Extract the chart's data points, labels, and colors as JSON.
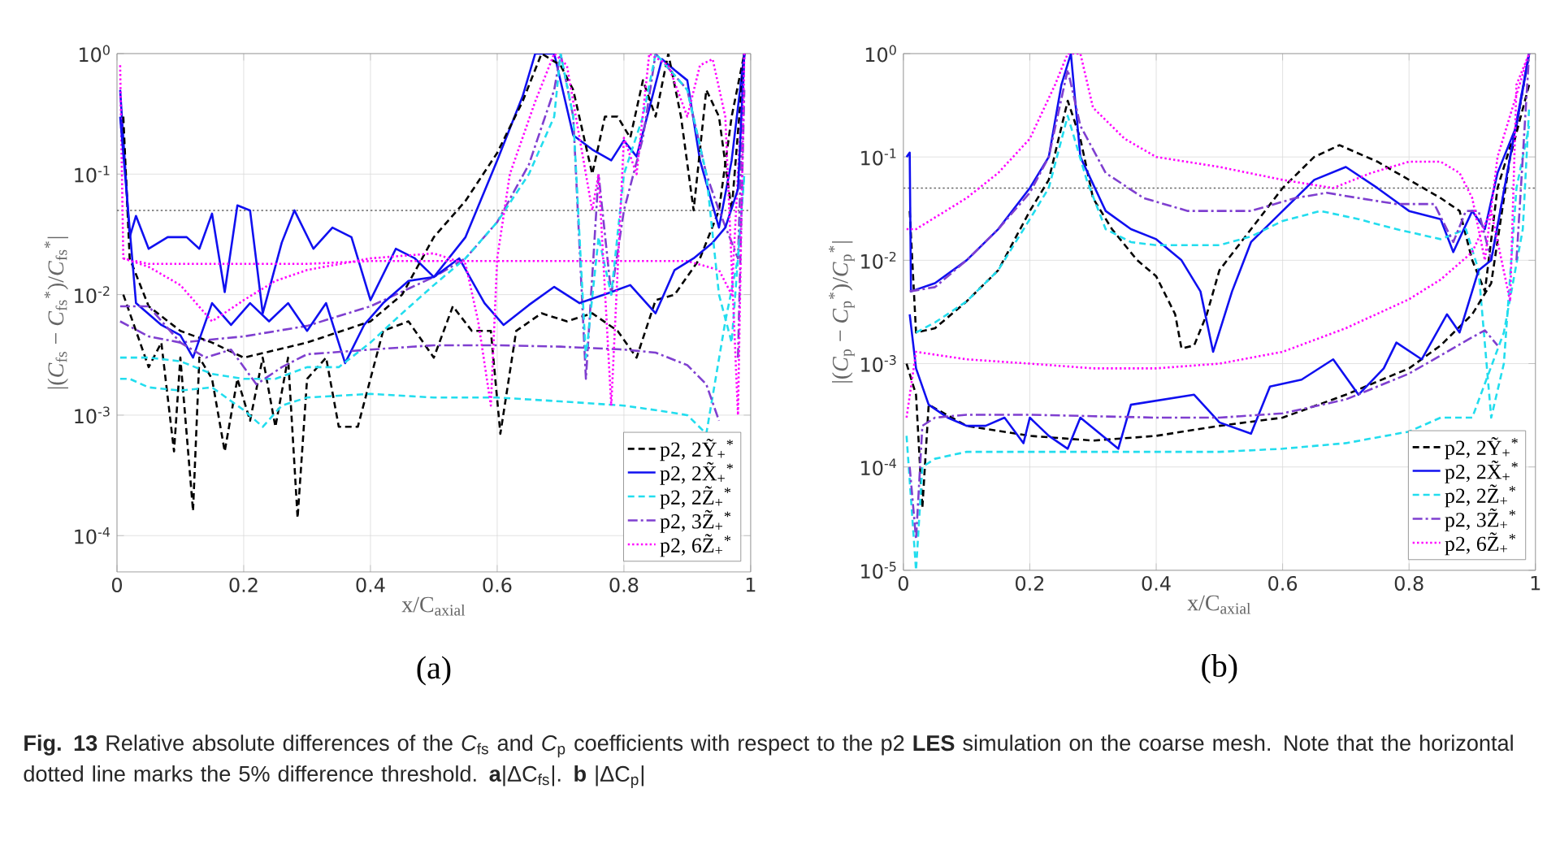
{
  "chart_data": [
    {
      "type": "line",
      "title": "(a)",
      "xlabel": "x/C$_{axial}$",
      "ylabel": "|(*C*$_{fs}$ − *C*$_{fs}$$^{*}$)/*C*$_{fs}$$^{*}$|",
      "log": "y",
      "grid": true,
      "legend": "bottom right",
      "xlim": [
        0,
        1
      ],
      "ylim": [
        5e-05,
        1
      ],
      "xticks": [
        0,
        0.2,
        0.4,
        0.6,
        0.8,
        1
      ],
      "yticks": [
        {
          "value": 0.0001,
          "label": "10$^{-4}$"
        },
        {
          "value": 0.001,
          "label": "10$^{-3}$"
        },
        {
          "value": 0.01,
          "label": "10$^{-2}$"
        },
        {
          "value": 0.1,
          "label": "10$^{-1}$"
        },
        {
          "value": 1,
          "label": "10$^{0}$"
        }
      ],
      "ref_lines": [
        {
          "axis": "y",
          "value": 0.05,
          "color": "#666666",
          "line_style": "dotted"
        }
      ],
      "annotations": [
        "**Fig. 13** Relative absolute differences of the *C*$_{fs}$ and *C*$_{p}$ coefficients with respect to the p2 **LES** simulation on the coarse mesh. Note that the horizontal dotted line marks the 5% difference threshold. **a**|ΔC$_{fs}$|. **b** |ΔC$_{p}$|"
      ],
      "series": [
        {
          "name": "p2, 2Ỹ$_{+}$$^{*}$",
          "color": "#000000",
          "line_style": "dashed",
          "x": [
            0.01,
            0.03,
            0.05,
            0.07,
            0.09,
            0.1,
            0.12,
            0.13,
            0.15,
            0.17,
            0.19,
            0.21,
            0.23,
            0.25,
            0.27,
            0.285,
            0.3,
            0.33,
            0.35,
            0.38,
            0.4,
            0.42,
            0.46,
            0.5,
            0.53,
            0.56,
            0.59,
            0.605,
            0.63,
            0.67,
            0.71,
            0.75,
            0.79,
            0.82,
            0.85,
            0.88,
            0.92,
            0.95,
            0.97,
            0.99
          ],
          "values": [
            0.01,
            0.005,
            0.0025,
            0.004,
            0.0005,
            0.003,
            0.00016,
            0.003,
            0.002,
            0.0005,
            0.002,
            0.0009,
            0.003,
            0.0008,
            0.003,
            0.00014,
            0.002,
            0.003,
            0.0008,
            0.0008,
            0.002,
            0.005,
            0.006,
            0.003,
            0.008,
            0.005,
            0.005,
            0.0007,
            0.005,
            0.007,
            0.006,
            0.007,
            0.005,
            0.003,
            0.009,
            0.01,
            0.02,
            0.05,
            0.3,
            1
          ]
        },
        {
          "name": "p2, 2X̃$_{+}$$^{*}$",
          "color": "#1010f0",
          "line_style": "solid",
          "x": [
            0.005,
            0.02,
            0.03,
            0.05,
            0.08,
            0.11,
            0.13,
            0.15,
            0.17,
            0.19,
            0.21,
            0.23,
            0.26,
            0.28,
            0.31,
            0.34,
            0.37,
            0.4,
            0.44,
            0.47,
            0.5,
            0.55,
            0.6,
            0.64,
            0.66,
            0.69,
            0.72,
            0.75,
            0.78,
            0.8,
            0.82,
            0.84,
            0.86,
            0.88,
            0.9,
            0.92,
            0.95,
            0.97,
            0.99
          ],
          "values": [
            0.5,
            0.03,
            0.045,
            0.024,
            0.03,
            0.03,
            0.024,
            0.047,
            0.0105,
            0.055,
            0.05,
            0.007,
            0.027,
            0.05,
            0.024,
            0.036,
            0.03,
            0.009,
            0.024,
            0.02,
            0.014,
            0.03,
            0.13,
            0.44,
            1,
            1,
            0.21,
            0.16,
            0.13,
            0.19,
            0.14,
            0.35,
            0.9,
            0.73,
            0.6,
            0.13,
            0.036,
            0.13,
            1
          ]
        },
        {
          "name": "p2, 2Z̃$_{+}$$^{*}$",
          "color": "#22ddee",
          "line_style": "dashed",
          "x": [
            0.005,
            0.02,
            0.05,
            0.1,
            0.15,
            0.2,
            0.23,
            0.26,
            0.3,
            0.4,
            0.5,
            0.6,
            0.7,
            0.8,
            0.85,
            0.9,
            0.93,
            0.96,
            0.98,
            0.99
          ],
          "values": [
            0.002,
            0.002,
            0.0017,
            0.0016,
            0.0017,
            0.0011,
            0.0008,
            0.0012,
            0.0014,
            0.0015,
            0.0014,
            0.0014,
            0.0013,
            0.0012,
            0.0011,
            0.001,
            0.0007,
            0.006,
            0.02,
            0.1
          ]
        },
        {
          "name": "p2, 3Z̃$_{+}$$^{*}$",
          "color": "#7f3fd0",
          "line_style": "dashdot",
          "x": [
            0.005,
            0.05,
            0.1,
            0.2,
            0.3,
            0.4,
            0.5,
            0.55,
            0.6,
            0.65,
            0.69,
            0.7,
            0.72,
            0.74,
            0.76,
            0.78,
            0.8,
            0.83,
            0.85,
            0.9,
            0.93,
            0.95,
            0.98,
            0.99
          ],
          "values": [
            0.006,
            0.0045,
            0.004,
            0.0045,
            0.0055,
            0.008,
            0.014,
            0.02,
            0.04,
            0.12,
            0.5,
            1,
            0.3,
            0.002,
            0.1,
            0.01,
            0.05,
            0.2,
            1,
            0.5,
            0.1,
            0.05,
            0.02,
            1
          ]
        },
        {
          "name": "p2, 6Z̃$_{+}$$^{*}$",
          "color": "#ff00ff",
          "line_style": "dotted",
          "x": [
            0.005,
            0.01,
            0.05,
            0.1,
            0.2,
            0.3,
            0.4,
            0.5,
            0.6,
            0.7,
            0.8,
            0.9,
            0.95,
            0.97,
            0.99
          ],
          "values": [
            0.8,
            0.02,
            0.018,
            0.018,
            0.018,
            0.018,
            0.019,
            0.019,
            0.019,
            0.019,
            0.019,
            0.019,
            0.016,
            0.01,
            1
          ]
        },
        {
          "color": "#000000",
          "line_style": "dashed",
          "x": [
            0.01,
            0.02,
            0.05,
            0.1,
            0.15,
            0.2,
            0.3,
            0.4,
            0.45,
            0.5,
            0.55,
            0.6,
            0.64,
            0.67,
            0.7,
            0.72,
            0.75,
            0.77,
            0.79,
            0.81,
            0.83,
            0.85,
            0.87,
            0.89,
            0.91,
            0.93,
            0.95,
            0.97,
            0.99
          ],
          "values": [
            0.3,
            0.02,
            0.008,
            0.005,
            0.004,
            0.003,
            0.004,
            0.006,
            0.01,
            0.03,
            0.06,
            0.15,
            0.4,
            1,
            0.8,
            0.5,
            0.1,
            0.3,
            0.3,
            0.2,
            0.6,
            0.3,
            1,
            0.3,
            0.05,
            0.5,
            0.3,
            0.05,
            1
          ]
        },
        {
          "color": "#1010f0",
          "line_style": "solid",
          "x": [
            0.005,
            0.03,
            0.07,
            0.1,
            0.12,
            0.15,
            0.18,
            0.21,
            0.24,
            0.27,
            0.3,
            0.33,
            0.36,
            0.39,
            0.42,
            0.46,
            0.5,
            0.54,
            0.58,
            0.61,
            0.65,
            0.69,
            0.73,
            0.78,
            0.81,
            0.85,
            0.88,
            0.91,
            0.94,
            0.96,
            0.98,
            0.99
          ],
          "values": [
            0.3,
            0.0085,
            0.0056,
            0.0046,
            0.003,
            0.0085,
            0.0056,
            0.0085,
            0.006,
            0.0085,
            0.005,
            0.0085,
            0.0027,
            0.0056,
            0.0085,
            0.013,
            0.014,
            0.02,
            0.0085,
            0.0056,
            0.0082,
            0.0116,
            0.0085,
            0.0105,
            0.012,
            0.007,
            0.016,
            0.02,
            0.027,
            0.036,
            0.075,
            1
          ]
        },
        {
          "color": "#22ddee",
          "line_style": "dashed",
          "x": [
            0.005,
            0.05,
            0.1,
            0.15,
            0.2,
            0.25,
            0.3,
            0.35,
            0.4,
            0.45,
            0.5,
            0.55,
            0.6,
            0.65,
            0.69,
            0.7,
            0.72,
            0.74,
            0.76,
            0.78,
            0.8,
            0.83,
            0.85,
            0.9,
            0.93,
            0.95,
            0.97,
            0.99
          ],
          "values": [
            0.003,
            0.003,
            0.0028,
            0.0022,
            0.002,
            0.002,
            0.0025,
            0.0025,
            0.004,
            0.007,
            0.012,
            0.02,
            0.04,
            0.1,
            0.3,
            1,
            0.3,
            0.003,
            0.03,
            0.01,
            0.1,
            0.3,
            1,
            0.5,
            0.1,
            0.01,
            0.004,
            0.1
          ]
        },
        {
          "color": "#7f3fd0",
          "line_style": "dashdot",
          "x": [
            0.005,
            0.05,
            0.1,
            0.14,
            0.18,
            0.22,
            0.26,
            0.3,
            0.4,
            0.5,
            0.6,
            0.7,
            0.8,
            0.85,
            0.9,
            0.93,
            0.95,
            0.97,
            0.98,
            0.99
          ],
          "values": [
            0.008,
            0.008,
            0.004,
            0.003,
            0.0035,
            0.0018,
            0.0025,
            0.0032,
            0.0035,
            0.0038,
            0.0038,
            0.0037,
            0.0035,
            0.0033,
            0.0026,
            0.0018,
            0.0009,
            null,
            0.003,
            0.5
          ]
        },
        {
          "color": "#ff00ff",
          "line_style": "dotted",
          "x": [
            0.01,
            0.05,
            0.1,
            0.15,
            0.2,
            0.25,
            0.3,
            0.4,
            0.5,
            0.55,
            0.57,
            0.59,
            0.6,
            0.62,
            0.66,
            0.69,
            0.71,
            0.73,
            0.75,
            0.76,
            0.78,
            0.8,
            0.82,
            0.84,
            0.87,
            0.9,
            0.92,
            0.94,
            0.96,
            0.98,
            0.99
          ],
          "values": [
            0.02,
            0.017,
            0.012,
            0.006,
            0.009,
            0.013,
            0.016,
            0.02,
            0.022,
            0.018,
            0.006,
            0.0012,
            0.02,
            0.1,
            0.4,
            1,
            0.8,
            0.2,
            0.05,
            0.1,
            0.0012,
            0.2,
            0.1,
            1,
            0.8,
            0.3,
            0.8,
            0.9,
            0.3,
            0.001,
            1
          ]
        }
      ]
    },
    {
      "type": "line",
      "title": "(b)",
      "xlabel": "x/C$_{axial}$",
      "ylabel": "|(*C*$_{p}$ − *C*$_{p}$$^{*}$)/*C*$_{p}$$^{*}$|",
      "log": "y",
      "grid": true,
      "legend": "bottom right",
      "xlim": [
        0,
        1
      ],
      "ylim": [
        1e-05,
        1
      ],
      "xticks": [
        0,
        0.2,
        0.4,
        0.6,
        0.8,
        1
      ],
      "yticks": [
        {
          "value": 1e-05,
          "label": "10$^{-5}$"
        },
        {
          "value": 0.0001,
          "label": "10$^{-4}$"
        },
        {
          "value": 0.001,
          "label": "10$^{-3}$"
        },
        {
          "value": 0.01,
          "label": "10$^{-2}$"
        },
        {
          "value": 0.1,
          "label": "10$^{-1}$"
        },
        {
          "value": 1,
          "label": "10$^{0}$"
        }
      ],
      "ref_lines": [
        {
          "axis": "y",
          "value": 0.05,
          "color": "#666666",
          "line_style": "dotted"
        }
      ],
      "series": [
        {
          "name": "p2, 2Ỹ$_{+}$$^{*}$",
          "color": "#000000",
          "line_style": "dashed",
          "x": [
            0.01,
            0.02,
            0.05,
            0.1,
            0.15,
            0.2,
            0.23,
            0.26,
            0.28,
            0.3,
            0.33,
            0.37,
            0.4,
            0.43,
            0.44,
            0.46,
            0.48,
            0.5,
            0.55,
            0.6,
            0.65,
            0.69,
            0.75,
            0.8,
            0.85,
            0.88,
            0.9,
            0.92,
            0.94,
            0.97,
            0.99
          ],
          "values": [
            0.03,
            0.002,
            0.0022,
            0.004,
            0.008,
            0.03,
            0.06,
            0.35,
            0.15,
            0.04,
            0.02,
            0.01,
            0.007,
            0.003,
            0.0014,
            0.0015,
            0.003,
            0.008,
            0.02,
            0.05,
            0.1,
            0.13,
            0.09,
            0.06,
            0.04,
            0.03,
            0.01,
            0.005,
            0.05,
            0.2,
            1
          ]
        },
        {
          "name": "p2, 2X̃$_{+}$$^{*}$",
          "color": "#1010f0",
          "line_style": "solid",
          "x": [
            0.005,
            0.01,
            0.012,
            0.05,
            0.1,
            0.15,
            0.2,
            0.23,
            0.25,
            0.265,
            0.28,
            0.32,
            0.36,
            0.4,
            0.44,
            0.47,
            0.49,
            0.52,
            0.55,
            0.6,
            0.65,
            0.7,
            0.75,
            0.8,
            0.85,
            0.87,
            0.9,
            0.92,
            0.94,
            0.97,
            0.99
          ],
          "values": [
            0.1,
            0.11,
            0.005,
            0.006,
            0.01,
            0.02,
            0.05,
            0.1,
            0.5,
            1,
            0.1,
            0.03,
            0.02,
            0.016,
            0.01,
            0.005,
            0.0013,
            0.005,
            0.015,
            0.03,
            0.06,
            0.08,
            0.05,
            0.03,
            0.025,
            0.012,
            0.03,
            0.02,
            0.07,
            0.2,
            1
          ]
        },
        {
          "name": "p2, 2Z̃$_{+}$$^{*}$",
          "color": "#22ddee",
          "line_style": "dashed",
          "x": [
            0.02,
            0.05,
            0.1,
            0.15,
            0.2,
            0.23,
            0.26,
            0.29,
            0.32,
            0.36,
            0.4,
            0.45,
            0.5,
            0.55,
            0.6,
            0.66,
            0.72,
            0.78,
            0.85,
            0.89,
            0.91,
            0.93,
            0.95,
            0.97,
            0.99
          ],
          "values": [
            0.002,
            0.0025,
            0.004,
            0.008,
            0.025,
            0.05,
            0.25,
            0.06,
            0.02,
            0.015,
            0.014,
            0.014,
            0.014,
            0.017,
            0.024,
            0.03,
            0.025,
            0.02,
            0.016,
            0.02,
            0.008,
            0.0003,
            0.001,
            0.05,
            0.2
          ]
        },
        {
          "name": "p2, 3Z̃$_{+}$$^{*}$",
          "color": "#7f3fd0",
          "line_style": "dashdot",
          "x": [
            0.01,
            0.05,
            0.1,
            0.15,
            0.2,
            0.23,
            0.26,
            0.28,
            0.32,
            0.38,
            0.45,
            0.55,
            0.62,
            0.67,
            0.72,
            0.78,
            0.84,
            0.87,
            0.89,
            0.91,
            0.93,
            0.96,
            0.99
          ],
          "values": [
            0.005,
            0.0055,
            0.01,
            0.02,
            0.045,
            0.1,
            0.7,
            0.2,
            0.07,
            0.04,
            0.03,
            0.03,
            0.04,
            0.045,
            0.04,
            0.035,
            0.035,
            0.015,
            0.03,
            0.03,
            0.01,
            0.1,
            1
          ]
        },
        {
          "name": "p2, 6Z̃$_{+}$$^{*}$",
          "color": "#ff00ff",
          "line_style": "dotted",
          "x": [
            0.005,
            0.02,
            0.1,
            0.15,
            0.2,
            0.24,
            0.26,
            0.28,
            0.3,
            0.35,
            0.4,
            0.5,
            0.6,
            0.68,
            0.74,
            0.8,
            0.85,
            0.88,
            0.9,
            0.92,
            0.94,
            0.97,
            0.99
          ],
          "values": [
            0.02,
            0.02,
            0.04,
            0.07,
            0.15,
            0.5,
            1,
            1,
            0.3,
            0.15,
            0.1,
            0.08,
            0.06,
            0.05,
            0.07,
            0.09,
            0.09,
            0.07,
            0.04,
            0.01,
            0.1,
            0.4,
            1
          ]
        },
        {
          "color": "#000000",
          "line_style": "dashed",
          "x": [
            0.005,
            0.02,
            0.03,
            0.04,
            0.1,
            0.2,
            0.3,
            0.4,
            0.5,
            0.6,
            0.7,
            0.8,
            0.85,
            0.9,
            0.93,
            0.96,
            0.99
          ],
          "values": [
            0.001,
            0.0005,
            4e-05,
            0.0004,
            0.00025,
            0.0002,
            0.00018,
            0.0002,
            0.00025,
            0.0003,
            0.0005,
            0.0009,
            0.0015,
            0.003,
            0.006,
            0.1,
            0.5
          ]
        },
        {
          "color": "#1010f0",
          "line_style": "solid",
          "x": [
            0.01,
            0.02,
            0.04,
            0.07,
            0.1,
            0.13,
            0.16,
            0.19,
            0.2,
            0.23,
            0.26,
            0.28,
            0.34,
            0.36,
            0.46,
            0.5,
            0.55,
            0.58,
            0.63,
            0.68,
            0.72,
            0.76,
            0.78,
            0.82,
            0.86,
            0.88,
            0.91,
            0.93,
            0.96,
            0.99
          ],
          "values": [
            0.003,
            0.0009,
            0.0004,
            0.0003,
            0.00025,
            0.00025,
            0.0003,
            0.00017,
            0.0003,
            0.0002,
            0.00015,
            0.0003,
            0.00015,
            0.0004,
            0.0005,
            0.00027,
            0.00021,
            0.0006,
            0.0007,
            0.0011,
            0.0005,
            0.0009,
            0.0016,
            0.0011,
            0.003,
            0.002,
            0.008,
            0.01,
            0.1,
            1
          ]
        },
        {
          "color": "#22ddee",
          "line_style": "dashed",
          "x": [
            0.005,
            0.02,
            0.03,
            0.05,
            0.1,
            0.2,
            0.3,
            0.4,
            0.5,
            0.6,
            0.7,
            0.8,
            0.85,
            0.9,
            0.95,
            0.98,
            0.99
          ],
          "values": [
            0.0002,
            1e-05,
            0.0001,
            0.00012,
            0.00014,
            0.00014,
            0.00014,
            0.00014,
            0.00014,
            0.00015,
            0.00017,
            0.00022,
            0.0003,
            0.0003,
            0.002,
            0.02,
            0.3
          ]
        },
        {
          "color": "#7f3fd0",
          "line_style": "dashdot",
          "x": [
            0.01,
            0.02,
            0.03,
            0.05,
            0.1,
            0.2,
            0.3,
            0.4,
            0.5,
            0.6,
            0.7,
            0.8,
            0.85,
            0.9,
            0.92,
            0.94,
            0.95,
            0.97,
            0.99
          ],
          "values": [
            0.0001,
            2e-05,
            0.00025,
            0.0003,
            0.00032,
            0.00032,
            0.00031,
            0.0003,
            0.0003,
            0.00033,
            0.00045,
            0.0008,
            0.0012,
            0.0018,
            0.0021,
            0.0015,
            null,
            0.01,
            1
          ]
        },
        {
          "color": "#ff00ff",
          "line_style": "dotted",
          "x": [
            0.005,
            0.02,
            0.1,
            0.2,
            0.3,
            0.4,
            0.5,
            0.6,
            0.7,
            0.8,
            0.85,
            0.9,
            0.93,
            0.96,
            0.97,
            0.99
          ],
          "values": [
            0.0003,
            0.0013,
            0.0011,
            0.001,
            0.0009,
            0.0009,
            0.001,
            0.0013,
            0.0022,
            0.0042,
            0.0065,
            0.012,
            0.03,
            0.004,
            0.5,
            1
          ]
        }
      ]
    }
  ]
}
